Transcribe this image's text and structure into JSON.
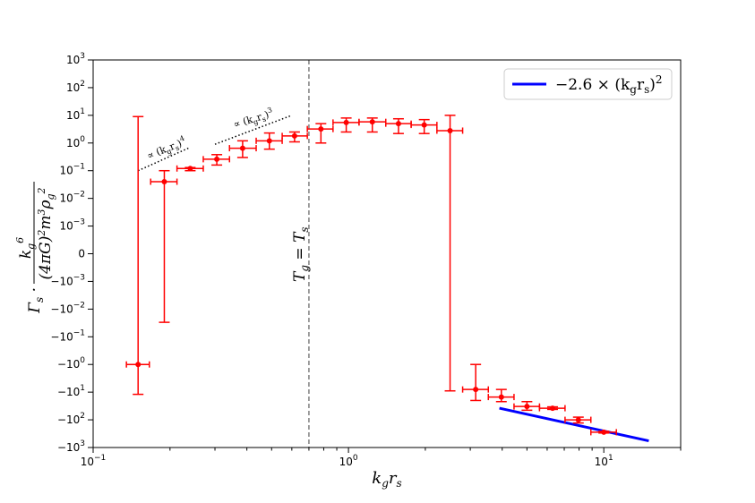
{
  "chart_data": {
    "type": "scatter",
    "xscale": "log",
    "yscale": "symlog",
    "xlim": [
      0.1,
      20
    ],
    "ylim": [
      -1000,
      1000
    ],
    "xlabel": "k_g r_s",
    "ylabel": "Γ_s · k_g^6 / ((4πG)^2 m^3 ρ_g^2)",
    "grid": false,
    "x_ticks": [
      {
        "value": 0.1,
        "base": "10",
        "exp": "−1"
      },
      {
        "value": 1,
        "base": "10",
        "exp": "0"
      },
      {
        "value": 10,
        "base": "10",
        "exp": "1"
      }
    ],
    "y_ticks": [
      {
        "value": 1000,
        "base": "10",
        "exp": "3"
      },
      {
        "value": 100,
        "base": "10",
        "exp": "2"
      },
      {
        "value": 10,
        "base": "10",
        "exp": "1"
      },
      {
        "value": 1,
        "base": "10",
        "exp": "0"
      },
      {
        "value": 0.1,
        "base": "10",
        "exp": "−1"
      },
      {
        "value": 0.01,
        "base": "10",
        "exp": "−2"
      },
      {
        "value": 0.001,
        "base": "10",
        "exp": "−3"
      },
      {
        "value": 0,
        "base": "0",
        "exp": ""
      },
      {
        "value": -0.001,
        "base": "−10",
        "exp": "−3"
      },
      {
        "value": -0.01,
        "base": "−10",
        "exp": "−2"
      },
      {
        "value": -0.1,
        "base": "−10",
        "exp": "−1"
      },
      {
        "value": -1,
        "base": "−10",
        "exp": "0"
      },
      {
        "value": -10,
        "base": "−10",
        "exp": "1"
      },
      {
        "value": -100,
        "base": "−10",
        "exp": "2"
      },
      {
        "value": -1000,
        "base": "−10",
        "exp": "3"
      }
    ],
    "series": [
      {
        "name": "data",
        "color": "#ff0000",
        "points": [
          {
            "x": 0.15,
            "xlo": 0.135,
            "xhi": 0.166,
            "y": -1.0,
            "ylo": -12,
            "yhi": 9
          },
          {
            "x": 0.19,
            "xlo": 0.168,
            "xhi": 0.213,
            "y": 0.04,
            "ylo": -0.03,
            "yhi": 0.1
          },
          {
            "x": 0.24,
            "xlo": 0.213,
            "xhi": 0.27,
            "y": 0.12,
            "ylo": 0.1,
            "yhi": 0.13
          },
          {
            "x": 0.305,
            "xlo": 0.27,
            "xhi": 0.342,
            "y": 0.26,
            "ylo": 0.16,
            "yhi": 0.38
          },
          {
            "x": 0.385,
            "xlo": 0.342,
            "xhi": 0.435,
            "y": 0.65,
            "ylo": 0.3,
            "yhi": 1.2
          },
          {
            "x": 0.49,
            "xlo": 0.435,
            "xhi": 0.55,
            "y": 1.2,
            "ylo": 0.6,
            "yhi": 2.3
          },
          {
            "x": 0.615,
            "xlo": 0.55,
            "xhi": 0.69,
            "y": 1.8,
            "ylo": 1.1,
            "yhi": 2.5
          },
          {
            "x": 0.78,
            "xlo": 0.69,
            "xhi": 0.87,
            "y": 3.2,
            "ylo": 1.0,
            "yhi": 5.0
          },
          {
            "x": 0.98,
            "xlo": 0.87,
            "xhi": 1.1,
            "y": 5.5,
            "ylo": 2.5,
            "yhi": 8.0
          },
          {
            "x": 1.24,
            "xlo": 1.1,
            "xhi": 1.4,
            "y": 5.8,
            "ylo": 2.5,
            "yhi": 8.0
          },
          {
            "x": 1.57,
            "xlo": 1.4,
            "xhi": 1.76,
            "y": 5.0,
            "ylo": 2.2,
            "yhi": 7.5
          },
          {
            "x": 1.98,
            "xlo": 1.76,
            "xhi": 2.22,
            "y": 4.5,
            "ylo": 2.2,
            "yhi": 7.0
          },
          {
            "x": 2.5,
            "xlo": 2.22,
            "xhi": 2.8,
            "y": 2.8,
            "ylo": -9,
            "yhi": 10
          },
          {
            "x": 3.15,
            "xlo": 2.8,
            "xhi": 3.53,
            "y": -8,
            "ylo": -20,
            "yhi": -1
          },
          {
            "x": 3.97,
            "xlo": 3.53,
            "xhi": 4.45,
            "y": -15,
            "ylo": -22,
            "yhi": -8
          },
          {
            "x": 5.0,
            "xlo": 4.45,
            "xhi": 5.6,
            "y": -33,
            "ylo": -45,
            "yhi": -22
          },
          {
            "x": 6.3,
            "xlo": 5.6,
            "xhi": 7.05,
            "y": -38,
            "ylo": -42,
            "yhi": -34
          },
          {
            "x": 7.95,
            "xlo": 7.05,
            "xhi": 8.9,
            "y": -100,
            "ylo": -130,
            "yhi": -80
          },
          {
            "x": 10.0,
            "xlo": 8.9,
            "xhi": 11.2,
            "y": -280,
            "ylo": -300,
            "yhi": -260
          }
        ]
      },
      {
        "name": "fit",
        "color": "#0000ff",
        "x": [
          3.9,
          15.0
        ],
        "y": [
          -38,
          -575
        ]
      }
    ],
    "vline": {
      "x": 0.7,
      "label": "T_g = T_s"
    },
    "annotations": [
      {
        "id": "k4",
        "text": "∝ (k_g r_s)^4",
        "x": [
          0.15,
          0.24
        ],
        "y": [
          0.1,
          0.7
        ]
      },
      {
        "id": "k3",
        "text": "∝ (k_g r_s)^3",
        "x": [
          0.3,
          0.6
        ],
        "y": [
          0.9,
          10
        ]
      }
    ],
    "legend": {
      "location": "top-right",
      "label": "−2.6 × (k_g r_s)^2"
    }
  }
}
